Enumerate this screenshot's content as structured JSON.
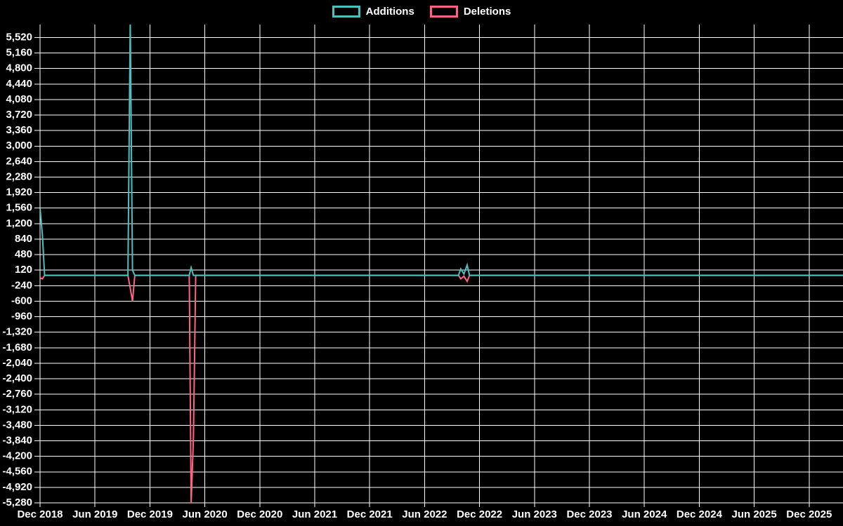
{
  "legend": {
    "items": [
      {
        "label": "Additions",
        "color": "#4bc0c0"
      },
      {
        "label": "Deletions",
        "color": "#ff6384"
      }
    ]
  },
  "chart_data": {
    "type": "line",
    "title": "",
    "background_color": "#000000",
    "grid_color": "#ffffff",
    "text_color": "#ffffff",
    "legend_position": "top-center",
    "grid": true,
    "x_axis": {
      "label": "",
      "tick_labels": [
        "Dec 2018",
        "Jun 2019",
        "Dec 2019",
        "Jun 2020",
        "Dec 2020",
        "Jun 2021",
        "Dec 2021",
        "Jun 2022",
        "Dec 2022",
        "Jun 2023",
        "Dec 2023",
        "Jun 2024",
        "Dec 2024",
        "Jun 2025",
        "Dec 2025"
      ],
      "tick_months": [
        0,
        6,
        12,
        18,
        24,
        30,
        36,
        42,
        48,
        54,
        60,
        66,
        72,
        78,
        84
      ],
      "domain_months": [
        0,
        87.7
      ]
    },
    "y_axis": {
      "label": "",
      "tick_values": [
        5520,
        5160,
        4800,
        4440,
        4080,
        3720,
        3360,
        3000,
        2640,
        2280,
        1920,
        1560,
        1200,
        840,
        480,
        120,
        -240,
        -600,
        -960,
        -1320,
        -1680,
        -2040,
        -2400,
        -2760,
        -3120,
        -3480,
        -3840,
        -4200,
        -4560,
        -4920,
        -5280
      ],
      "tick_labels": [
        "5,520",
        "5,160",
        "4,800",
        "4,440",
        "4,080",
        "3,720",
        "3,360",
        "3,000",
        "2,640",
        "2,280",
        "1,920",
        "1,560",
        "1,200",
        "840",
        "480",
        "120",
        "-240",
        "-600",
        "-960",
        "-1,320",
        "-1,680",
        "-2,040",
        "-2,400",
        "-2,760",
        "-3,120",
        "-3,480",
        "-3,840",
        "-4,200",
        "-4,560",
        "-4,920",
        "-5,280"
      ],
      "domain": [
        -5280,
        5820
      ]
    },
    "series": [
      {
        "name": "Additions",
        "color": "#4bc0c0",
        "points": [
          [
            0,
            1560
          ],
          [
            0.25,
            950
          ],
          [
            0.5,
            0
          ],
          [
            9.6,
            0
          ],
          [
            9.85,
            5900
          ],
          [
            10.1,
            120
          ],
          [
            10.35,
            0
          ],
          [
            16.3,
            0
          ],
          [
            16.5,
            180
          ],
          [
            16.75,
            0
          ],
          [
            45.7,
            0
          ],
          [
            45.95,
            150
          ],
          [
            46.3,
            30
          ],
          [
            46.65,
            240
          ],
          [
            46.9,
            0
          ],
          [
            87.7,
            0
          ]
        ]
      },
      {
        "name": "Deletions",
        "color": "#ff6384",
        "points": [
          [
            0,
            -60
          ],
          [
            0.25,
            -80
          ],
          [
            0.5,
            0
          ],
          [
            9.6,
            0
          ],
          [
            9.85,
            -300
          ],
          [
            10.1,
            -600
          ],
          [
            10.35,
            0
          ],
          [
            16.3,
            0
          ],
          [
            16.5,
            -5300
          ],
          [
            16.75,
            -3800
          ],
          [
            17.0,
            0
          ],
          [
            45.7,
            0
          ],
          [
            45.95,
            -80
          ],
          [
            46.3,
            -20
          ],
          [
            46.65,
            -140
          ],
          [
            46.9,
            0
          ],
          [
            87.7,
            0
          ]
        ]
      }
    ]
  }
}
